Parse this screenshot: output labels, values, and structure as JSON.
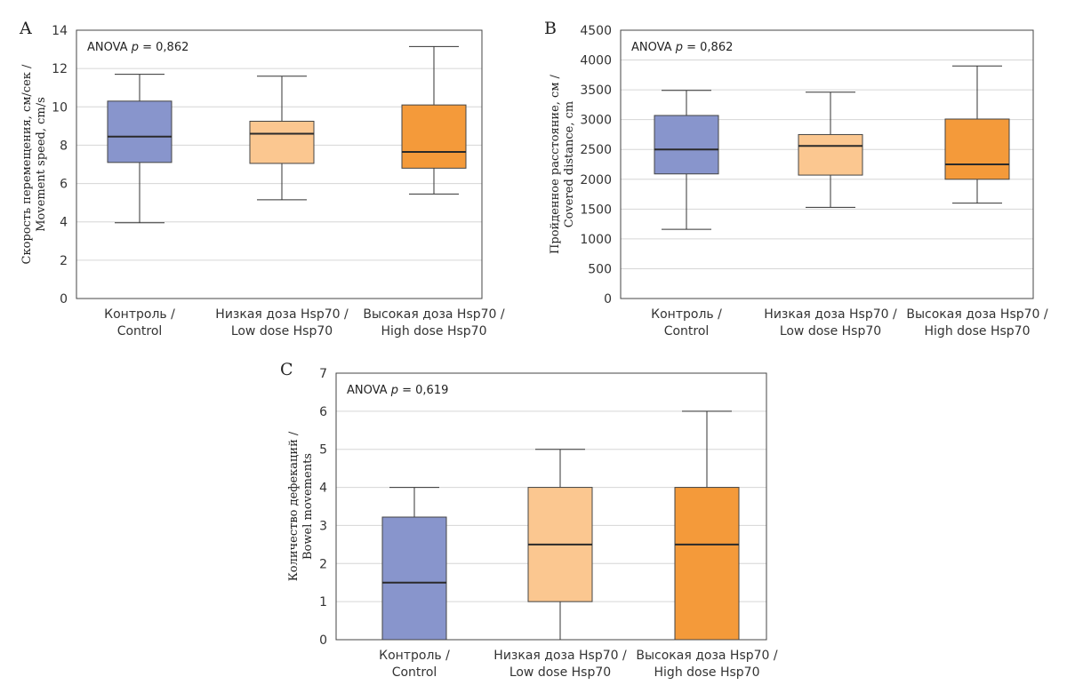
{
  "chart_data": [
    {
      "type": "box",
      "panel_label": "A",
      "ylabel": [
        "Скорость перемещения, см/сек /",
        "Movement speed, cm/s"
      ],
      "ylim": [
        0,
        14
      ],
      "yticks": [
        "0",
        "2",
        "4",
        "6",
        "8",
        "10",
        "12",
        "14"
      ],
      "annotation": {
        "prefix": "ANOVA ",
        "p": "p",
        "suffix": " = 0,862"
      },
      "grid": true,
      "categories": [
        [
          "Контроль /",
          "Control"
        ],
        [
          "Низкая доза Hsp70 /",
          "Low dose Hsp70"
        ],
        [
          "Высокая доза Hsp70 /",
          "High dose Hsp70"
        ]
      ],
      "boxes": [
        {
          "min": 3.95,
          "q1": 7.1,
          "median": 8.45,
          "q3": 10.3,
          "max": 11.7,
          "color": "#8895CC"
        },
        {
          "min": 5.15,
          "q1": 7.05,
          "median": 8.6,
          "q3": 9.25,
          "max": 11.6,
          "color": "#FBC790"
        },
        {
          "min": 5.45,
          "q1": 6.8,
          "median": 7.65,
          "q3": 10.1,
          "max": 13.15,
          "color": "#F49A3A"
        }
      ]
    },
    {
      "type": "box",
      "panel_label": "B",
      "ylabel": [
        "Пройденное расстояние, см /",
        "Covered distance, cm"
      ],
      "ylim": [
        0,
        4500
      ],
      "yticks": [
        "0",
        "500",
        "1000",
        "1500",
        "2000",
        "2500",
        "3000",
        "3500",
        "4000",
        "4500"
      ],
      "annotation": {
        "prefix": "ANOVA ",
        "p": "p",
        "suffix": " = 0,862"
      },
      "grid": true,
      "categories": [
        [
          "Контроль /",
          "Control"
        ],
        [
          "Низкая доза Hsp70 /",
          "Low dose Hsp70"
        ],
        [
          "Высокая доза Hsp70 /",
          "High dose Hsp70"
        ]
      ],
      "boxes": [
        {
          "min": 1160,
          "q1": 2090,
          "median": 2500,
          "q3": 3070,
          "max": 3490,
          "color": "#8895CC"
        },
        {
          "min": 1530,
          "q1": 2070,
          "median": 2560,
          "q3": 2750,
          "max": 3460,
          "color": "#FBC790"
        },
        {
          "min": 1600,
          "q1": 2000,
          "median": 2250,
          "q3": 3010,
          "max": 3900,
          "color": "#F49A3A"
        }
      ]
    },
    {
      "type": "box",
      "panel_label": "C",
      "ylabel": [
        "Количество дефекаций /",
        "Bowel movements"
      ],
      "ylim": [
        0,
        7
      ],
      "yticks": [
        "0",
        "1",
        "2",
        "3",
        "4",
        "5",
        "6",
        "7"
      ],
      "annotation": {
        "prefix": "ANOVA ",
        "p": "p",
        "suffix": " = 0,619"
      },
      "grid": true,
      "categories": [
        [
          "Контроль /",
          "Control"
        ],
        [
          "Низкая доза Hsp70 /",
          "Low dose Hsp70"
        ],
        [
          "Высокая доза Hsp70 /",
          "High dose Hsp70"
        ]
      ],
      "boxes": [
        {
          "min": 0,
          "q1": 0,
          "median": 1.5,
          "q3": 3.22,
          "max": 4,
          "color": "#8895CC"
        },
        {
          "min": 0,
          "q1": 1,
          "median": 2.5,
          "q3": 4,
          "max": 5,
          "color": "#FBC790"
        },
        {
          "min": 0,
          "q1": 0,
          "median": 2.5,
          "q3": 4,
          "max": 6,
          "color": "#F49A3A"
        }
      ]
    }
  ]
}
